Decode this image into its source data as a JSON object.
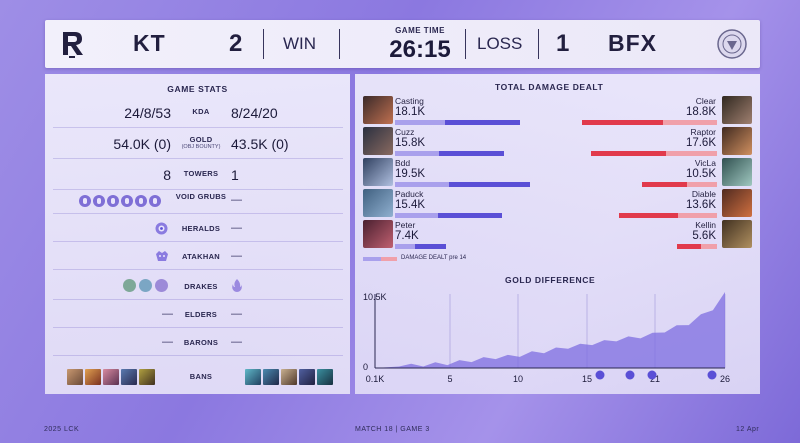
{
  "header": {
    "team_left": "KT",
    "score_left": "2",
    "result_left": "WIN",
    "game_time_label": "GAME TIME",
    "game_time": "26:15",
    "result_right": "LOSS",
    "score_right": "1",
    "team_right": "BFX"
  },
  "game_stats": {
    "title": "GAME STATS",
    "kda": {
      "label": "KDA",
      "left": "24/8/53",
      "right": "8/24/20"
    },
    "gold": {
      "label": "GOLD",
      "sublabel": "(OBJ BOUNTY)",
      "left": "54.0K (0)",
      "right": "43.5K (0)"
    },
    "towers": {
      "label": "TOWERS",
      "left": "8",
      "right": "1"
    },
    "void_grubs": {
      "label": "VOID GRUBS",
      "left_count": 6,
      "right": "—"
    },
    "heralds": {
      "label": "HERALDS",
      "right": "—"
    },
    "atakhan": {
      "label": "ATAKHAN",
      "right": "—"
    },
    "drakes": {
      "label": "DRAKES"
    },
    "elders": {
      "label": "ELDERS",
      "left": "—",
      "right": "—"
    },
    "barons": {
      "label": "BARONS",
      "left": "—",
      "right": "—"
    },
    "bans": {
      "label": "BANS"
    }
  },
  "damage": {
    "title": "TOTAL DAMAGE DEALT",
    "legend": "DAMAGE DEALT pre 14",
    "left_color": "#5a4fd6",
    "left_pre_color": "#a9a0ec",
    "right_color": "#e13a4c",
    "right_pre_color": "#f0a0aa",
    "left": [
      {
        "name": "Casting",
        "value": "18.1K"
      },
      {
        "name": "Cuzz",
        "value": "15.8K"
      },
      {
        "name": "Bdd",
        "value": "19.5K"
      },
      {
        "name": "Paduck",
        "value": "15.4K"
      },
      {
        "name": "Peter",
        "value": "7.4K"
      }
    ],
    "right": [
      {
        "name": "Clear",
        "value": "18.8K"
      },
      {
        "name": "Raptor",
        "value": "17.6K"
      },
      {
        "name": "VicLa",
        "value": "10.5K"
      },
      {
        "name": "Diable",
        "value": "13.6K"
      },
      {
        "name": "Kellin",
        "value": "5.6K"
      }
    ]
  },
  "gold_diff": {
    "title": "GOLD DIFFERENCE",
    "y_top_label": "10.5K",
    "y_zero_label": "0",
    "x_labels": [
      "0.1K",
      "5",
      "10",
      "15",
      "21",
      "26"
    ],
    "fill_color": "#7d6ee0"
  },
  "footer": {
    "league": "2025 LCK",
    "match": "MATCH 18  |  GAME 3",
    "date": "12 Apr"
  }
}
